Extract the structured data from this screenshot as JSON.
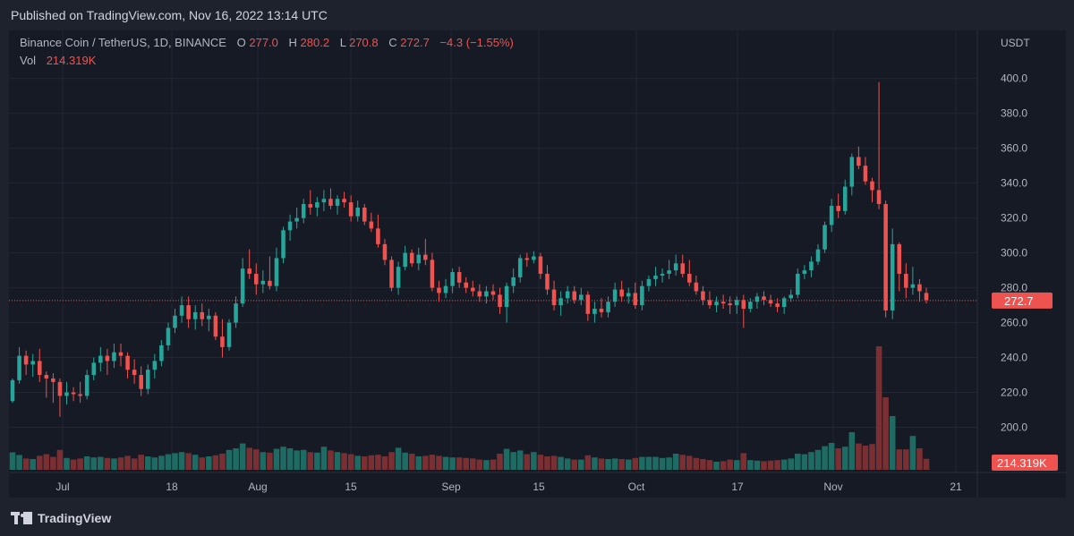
{
  "header": {
    "published": "Published on TradingView.com, Nov 16, 2022 13:14 UTC"
  },
  "legend": {
    "symbol": "Binance Coin / TetherUS, 1D, BINANCE",
    "o_label": "O",
    "o_value": "277.0",
    "h_label": "H",
    "h_value": "280.2",
    "l_label": "L",
    "l_value": "270.8",
    "c_label": "C",
    "c_value": "272.7",
    "change": "−4.3 (−1.55%)",
    "vol_label": "Vol",
    "vol_value": "214.319K"
  },
  "footer": {
    "brand": "TradingView",
    "logo_icon": "tradingview-logo-icon"
  },
  "colors": {
    "background": "#161a25",
    "up": "#26a69a",
    "down": "#ef5350",
    "vol_up": "#1e6b64",
    "vol_down": "#7a2f33",
    "text": "#b2b5be",
    "grid": "#232733"
  },
  "chart_data": {
    "type": "candlestick",
    "currency": "USDT",
    "ylim": [
      190,
      405
    ],
    "y_ticks": [
      "200.0",
      "220.0",
      "240.0",
      "260.0",
      "280.0",
      "300.0",
      "320.0",
      "340.0",
      "360.0",
      "380.0",
      "400.0"
    ],
    "x_ticks": [
      "Jul",
      "18",
      "Aug",
      "15",
      "Sep",
      "15",
      "Oct",
      "17",
      "Nov",
      "21"
    ],
    "last_price_label": "272.7",
    "last_price": 272.7,
    "last_volume_label": "214.319K",
    "candles": [
      [
        215,
        228,
        214,
        227,
        0.65
      ],
      [
        227,
        246,
        225,
        241,
        0.55
      ],
      [
        241,
        244,
        230,
        236,
        0.42
      ],
      [
        236,
        242,
        229,
        238,
        0.4
      ],
      [
        238,
        245,
        226,
        230,
        0.52
      ],
      [
        230,
        232,
        217,
        228,
        0.58
      ],
      [
        228,
        231,
        214,
        226,
        0.48
      ],
      [
        226,
        228,
        206,
        218,
        0.74
      ],
      [
        218,
        226,
        213,
        220,
        0.44
      ],
      [
        220,
        223,
        215,
        219,
        0.38
      ],
      [
        219,
        226,
        214,
        218,
        0.42
      ],
      [
        218,
        233,
        216,
        230,
        0.5
      ],
      [
        230,
        240,
        227,
        237,
        0.46
      ],
      [
        237,
        246,
        232,
        241,
        0.48
      ],
      [
        241,
        245,
        230,
        238,
        0.44
      ],
      [
        238,
        248,
        234,
        243,
        0.42
      ],
      [
        243,
        248,
        235,
        241,
        0.46
      ],
      [
        241,
        243,
        228,
        233,
        0.52
      ],
      [
        233,
        239,
        225,
        230,
        0.42
      ],
      [
        230,
        235,
        218,
        222,
        0.56
      ],
      [
        222,
        236,
        219,
        233,
        0.5
      ],
      [
        233,
        242,
        228,
        238,
        0.46
      ],
      [
        238,
        250,
        235,
        247,
        0.52
      ],
      [
        247,
        260,
        244,
        257,
        0.58
      ],
      [
        257,
        268,
        254,
        264,
        0.62
      ],
      [
        264,
        275,
        260,
        270,
        0.66
      ],
      [
        270,
        275,
        257,
        262,
        0.62
      ],
      [
        262,
        270,
        256,
        266,
        0.56
      ],
      [
        266,
        271,
        258,
        262,
        0.46
      ],
      [
        262,
        268,
        255,
        264,
        0.5
      ],
      [
        264,
        266,
        250,
        252,
        0.54
      ],
      [
        252,
        262,
        240,
        246,
        0.6
      ],
      [
        246,
        262,
        244,
        260,
        0.74
      ],
      [
        260,
        275,
        257,
        271,
        0.8
      ],
      [
        271,
        297,
        269,
        291,
        0.98
      ],
      [
        291,
        302,
        285,
        288,
        0.82
      ],
      [
        288,
        294,
        276,
        282,
        0.76
      ],
      [
        282,
        290,
        277,
        284,
        0.66
      ],
      [
        284,
        298,
        279,
        281,
        0.64
      ],
      [
        281,
        303,
        278,
        297,
        0.78
      ],
      [
        297,
        315,
        294,
        313,
        0.86
      ],
      [
        313,
        322,
        307,
        318,
        0.8
      ],
      [
        318,
        326,
        314,
        320,
        0.72
      ],
      [
        320,
        331,
        317,
        328,
        0.74
      ],
      [
        328,
        336,
        322,
        326,
        0.66
      ],
      [
        326,
        332,
        321,
        329,
        0.64
      ],
      [
        329,
        336,
        324,
        331,
        0.86
      ],
      [
        331,
        337,
        325,
        327,
        0.72
      ],
      [
        327,
        333,
        322,
        331,
        0.66
      ],
      [
        331,
        335,
        326,
        329,
        0.62
      ],
      [
        329,
        333,
        318,
        321,
        0.58
      ],
      [
        321,
        330,
        318,
        326,
        0.52
      ],
      [
        326,
        328,
        316,
        318,
        0.5
      ],
      [
        318,
        323,
        312,
        314,
        0.54
      ],
      [
        314,
        322,
        303,
        305,
        0.56
      ],
      [
        305,
        308,
        293,
        296,
        0.5
      ],
      [
        296,
        298,
        278,
        280,
        0.66
      ],
      [
        280,
        295,
        276,
        292,
        0.82
      ],
      [
        292,
        304,
        290,
        300,
        0.64
      ],
      [
        300,
        302,
        292,
        294,
        0.6
      ],
      [
        294,
        303,
        290,
        299,
        0.5
      ],
      [
        299,
        308,
        293,
        296,
        0.52
      ],
      [
        296,
        300,
        278,
        280,
        0.56
      ],
      [
        280,
        284,
        272,
        277,
        0.52
      ],
      [
        277,
        285,
        274,
        281,
        0.48
      ],
      [
        281,
        291,
        277,
        289,
        0.46
      ],
      [
        289,
        292,
        280,
        283,
        0.46
      ],
      [
        283,
        286,
        277,
        280,
        0.44
      ],
      [
        280,
        284,
        275,
        278,
        0.42
      ],
      [
        278,
        282,
        272,
        275,
        0.38
      ],
      [
        275,
        281,
        271,
        278,
        0.36
      ],
      [
        278,
        282,
        273,
        276,
        0.38
      ],
      [
        276,
        280,
        265,
        269,
        0.6
      ],
      [
        269,
        283,
        260,
        281,
        0.78
      ],
      [
        281,
        291,
        277,
        286,
        0.66
      ],
      [
        286,
        299,
        283,
        297,
        0.72
      ],
      [
        297,
        300,
        292,
        296,
        0.58
      ],
      [
        296,
        301,
        294,
        298,
        0.66
      ],
      [
        298,
        300,
        285,
        288,
        0.56
      ],
      [
        288,
        293,
        276,
        279,
        0.5
      ],
      [
        279,
        284,
        267,
        270,
        0.52
      ],
      [
        270,
        278,
        264,
        274,
        0.48
      ],
      [
        274,
        281,
        271,
        278,
        0.42
      ],
      [
        278,
        281,
        271,
        273,
        0.38
      ],
      [
        273,
        280,
        270,
        276,
        0.38
      ],
      [
        276,
        278,
        261,
        265,
        0.54
      ],
      [
        265,
        272,
        260,
        268,
        0.46
      ],
      [
        268,
        274,
        263,
        266,
        0.42
      ],
      [
        266,
        275,
        263,
        272,
        0.4
      ],
      [
        272,
        283,
        269,
        279,
        0.42
      ],
      [
        279,
        284,
        272,
        275,
        0.4
      ],
      [
        275,
        280,
        271,
        277,
        0.38
      ],
      [
        277,
        283,
        268,
        270,
        0.44
      ],
      [
        270,
        284,
        267,
        281,
        0.48
      ],
      [
        281,
        287,
        278,
        285,
        0.48
      ],
      [
        285,
        292,
        281,
        287,
        0.48
      ],
      [
        287,
        291,
        283,
        288,
        0.44
      ],
      [
        288,
        296,
        285,
        290,
        0.46
      ],
      [
        290,
        299,
        287,
        294,
        0.6
      ],
      [
        294,
        299,
        286,
        288,
        0.56
      ],
      [
        288,
        296,
        281,
        283,
        0.52
      ],
      [
        283,
        287,
        276,
        278,
        0.44
      ],
      [
        278,
        281,
        270,
        273,
        0.4
      ],
      [
        273,
        278,
        268,
        270,
        0.36
      ],
      [
        270,
        275,
        266,
        272,
        0.3
      ],
      [
        272,
        276,
        268,
        271,
        0.32
      ],
      [
        271,
        275,
        265,
        270,
        0.38
      ],
      [
        270,
        275,
        265,
        273,
        0.36
      ],
      [
        273,
        276,
        257,
        268,
        0.62
      ],
      [
        268,
        274,
        266,
        272,
        0.36
      ],
      [
        272,
        277,
        268,
        275,
        0.34
      ],
      [
        275,
        278,
        270,
        273,
        0.32
      ],
      [
        273,
        276,
        269,
        271,
        0.34
      ],
      [
        271,
        274,
        266,
        269,
        0.36
      ],
      [
        269,
        275,
        265,
        274,
        0.38
      ],
      [
        274,
        279,
        272,
        276,
        0.42
      ],
      [
        276,
        291,
        274,
        288,
        0.6
      ],
      [
        288,
        293,
        285,
        290,
        0.58
      ],
      [
        290,
        298,
        286,
        295,
        0.66
      ],
      [
        295,
        305,
        293,
        302,
        0.74
      ],
      [
        302,
        318,
        300,
        316,
        0.88
      ],
      [
        316,
        331,
        312,
        327,
        1.0
      ],
      [
        327,
        334,
        320,
        324,
        0.8
      ],
      [
        324,
        342,
        322,
        338,
        0.86
      ],
      [
        338,
        357,
        333,
        355,
        1.4
      ],
      [
        355,
        361,
        348,
        350,
        0.98
      ],
      [
        350,
        355,
        339,
        341,
        0.9
      ],
      [
        341,
        343,
        329,
        336,
        0.96
      ],
      [
        336,
        398,
        325,
        328,
        4.6
      ],
      [
        328,
        330,
        263,
        267,
        2.7
      ],
      [
        267,
        314,
        262,
        305,
        2.0
      ],
      [
        305,
        306,
        278,
        288,
        0.76
      ],
      [
        288,
        294,
        274,
        280,
        0.76
      ],
      [
        280,
        292,
        276,
        282,
        1.26
      ],
      [
        282,
        285,
        272,
        278,
        0.8
      ],
      [
        277,
        280,
        271,
        273,
        0.41
      ]
    ]
  }
}
